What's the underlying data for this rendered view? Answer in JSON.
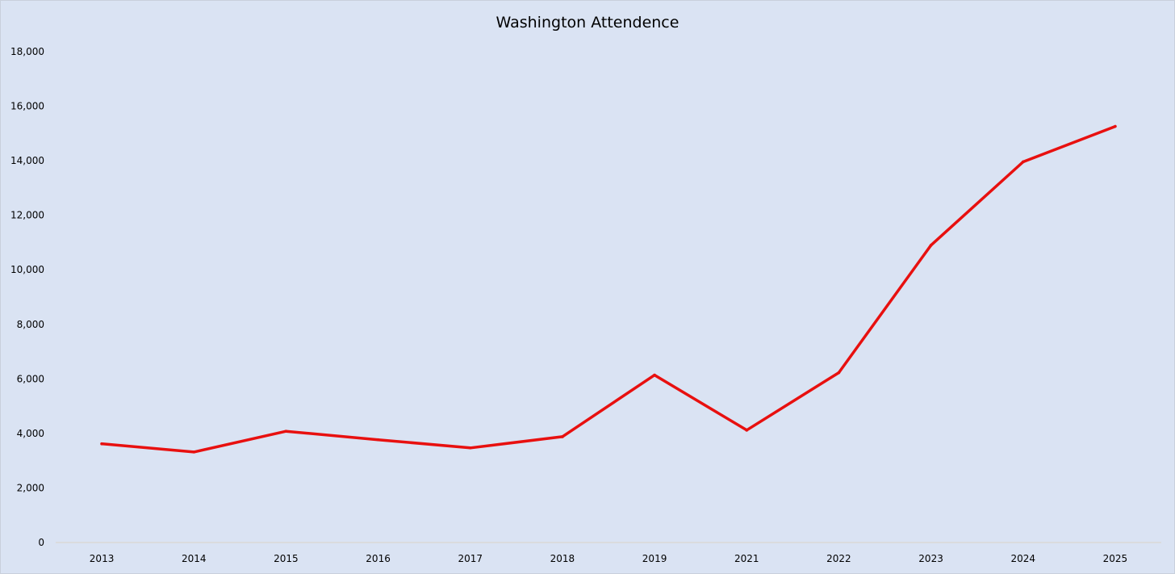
{
  "chart_data": {
    "type": "line",
    "title": "Washington Attendence",
    "xlabel": "",
    "ylabel": "",
    "categories": [
      "2013",
      "2014",
      "2015",
      "2016",
      "2017",
      "2018",
      "2019",
      "2021",
      "2022",
      "2023",
      "2024",
      "2025"
    ],
    "series": [
      {
        "values": [
          3620,
          3320,
          4080,
          3770,
          3470,
          3880,
          6140,
          4120,
          6230,
          10900,
          13960,
          15260
        ]
      }
    ],
    "ylim": [
      0,
      18000
    ],
    "yticks": [
      "0",
      "2,000",
      "4,000",
      "6,000",
      "8,000",
      "10,000",
      "12,000",
      "14,000",
      "16,000",
      "18,000"
    ],
    "grid": false,
    "legend": "none",
    "colors": {
      "line": "#e8100f",
      "background": "#dae3f3",
      "axis": "#d9d3c7"
    }
  }
}
